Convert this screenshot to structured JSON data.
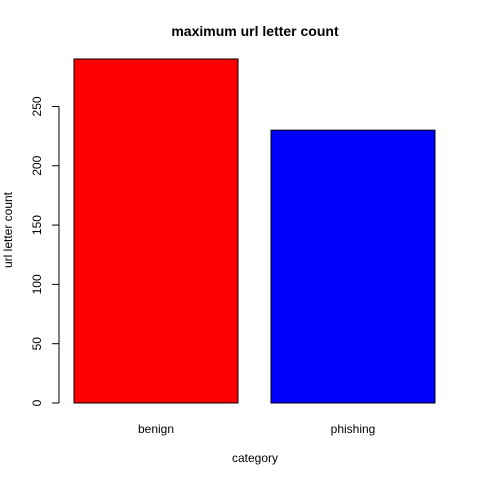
{
  "chart_data": {
    "type": "bar",
    "title": "maximum url letter count",
    "xlabel": "category",
    "ylabel": "url letter count",
    "categories": [
      "benign",
      "phishing"
    ],
    "values": [
      290,
      230
    ],
    "bar_colors": [
      "#ff0000",
      "#0000ff"
    ],
    "ylim": [
      0,
      290
    ],
    "yticks": [
      0,
      50,
      100,
      150,
      200,
      250
    ],
    "grid": false,
    "legend": "none"
  }
}
